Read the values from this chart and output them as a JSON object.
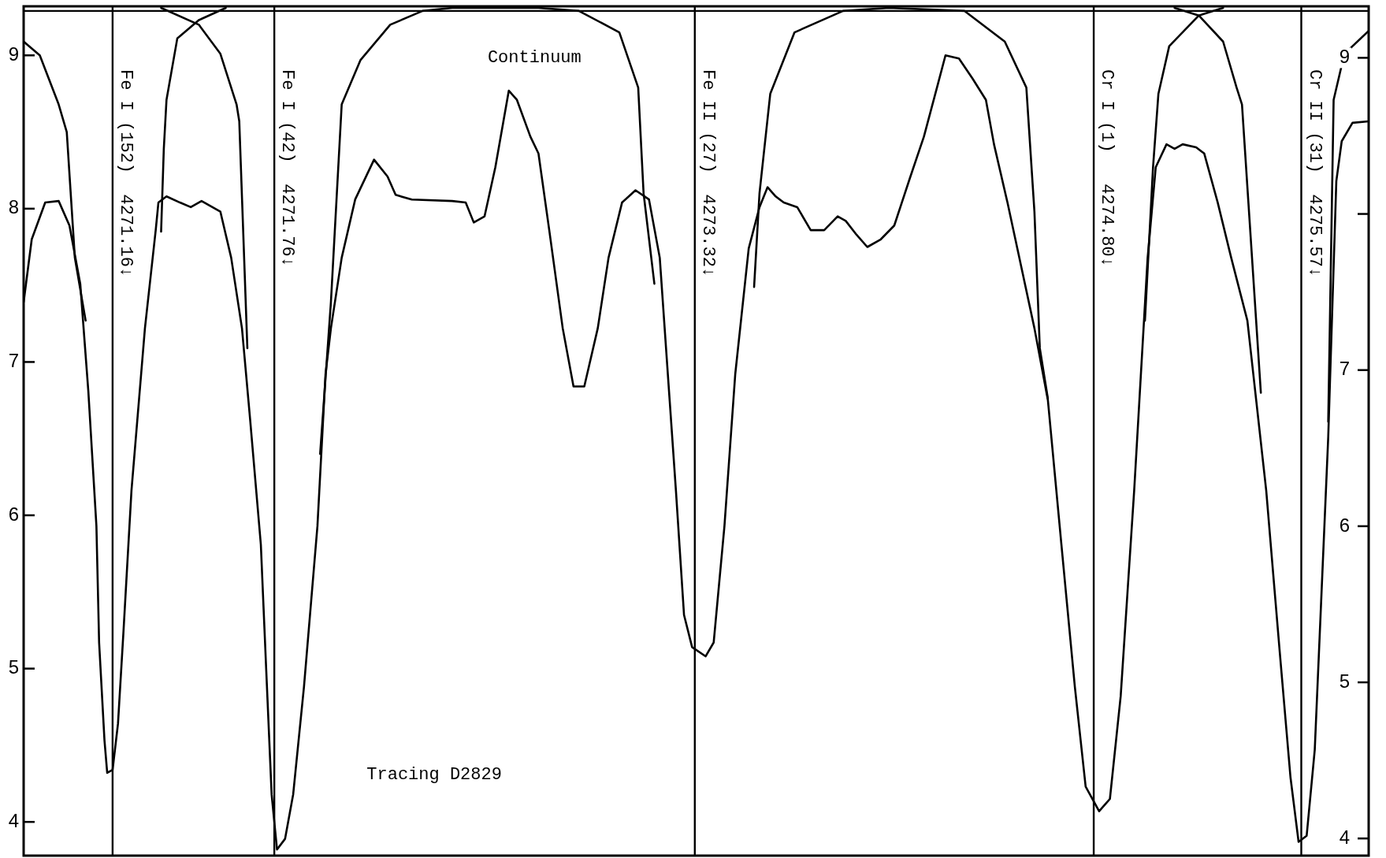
{
  "chart_data": {
    "type": "line",
    "xlim": [
      4270.83,
      4275.82
    ],
    "ylim": [
      3.78,
      9.32
    ],
    "yticks": [
      4,
      5,
      6,
      7,
      8,
      9
    ],
    "y2lim": [
      3.89,
      9.33
    ],
    "y2ticks": [
      4,
      5,
      6,
      7,
      {
        "value": 8,
        "label": null
      },
      9
    ],
    "tick_labels": "y",
    "grid": false,
    "legend": false,
    "marker": "none",
    "line_style": "solid",
    "annotations": [
      "Continuum",
      "Tracing D2829"
    ],
    "ref_lines": [
      {
        "axis": "x",
        "value": 4271.16,
        "label": "Fe I (152)  4271.16↓"
      },
      {
        "axis": "x",
        "value": 4271.76,
        "label": "Fe I (42)  4271.76↓"
      },
      {
        "axis": "x",
        "value": 4273.32,
        "label": "Fe II (27)  4273.32↓"
      },
      {
        "axis": "x",
        "value": 4274.8,
        "label": "Cr I (1)   4274.80↓"
      },
      {
        "axis": "x",
        "value": 4275.57,
        "label": "Cr II (31)  4275.57↓"
      },
      {
        "axis": "y",
        "value": 9.29
      }
    ],
    "series": [
      {
        "color": "#000000",
        "x": [
          4270.83,
          4270.86,
          4270.91,
          4270.96,
          4271.0,
          4271.04,
          4271.07,
          4271.1,
          4271.11,
          4271.13,
          4271.14,
          4271.16,
          4271.18,
          4271.2,
          4271.23,
          4271.28,
          4271.32,
          4271.33,
          4271.36,
          4271.41,
          4271.45,
          4271.49,
          4271.56,
          4271.6,
          4271.64,
          4271.67,
          4271.71,
          4271.73,
          4271.75,
          4271.77,
          4271.8,
          4271.83,
          4271.87,
          4271.92,
          4271.95,
          4271.97,
          4272.01,
          4272.06,
          4272.13,
          4272.18,
          4272.21,
          4272.27,
          4272.42,
          4272.47,
          4272.5,
          4272.54,
          4272.58,
          4272.63,
          4272.66,
          4272.71,
          4272.74,
          4272.78,
          4272.83,
          4272.87,
          4272.91,
          4272.96,
          4273.0,
          4273.05,
          4273.1,
          4273.15,
          4273.19,
          4273.25,
          4273.28,
          4273.31,
          4273.36,
          4273.39,
          4273.43,
          4273.47,
          4273.52,
          4273.56,
          4273.59,
          4273.62,
          4273.65,
          4273.7,
          4273.75,
          4273.8,
          4273.85,
          4273.88,
          4273.92,
          4273.96,
          4274.01,
          4274.06,
          4274.12,
          4274.17,
          4274.22,
          4274.25,
          4274.3,
          4274.35,
          4274.4,
          4274.43,
          4274.48,
          4274.53,
          4274.58,
          4274.63,
          4274.68,
          4274.73,
          4274.77,
          4274.82,
          4274.86,
          4274.9,
          4274.95,
          4275.0,
          4275.03,
          4275.07,
          4275.1,
          4275.13,
          4275.18,
          4275.21,
          4275.26,
          4275.31,
          4275.37,
          4275.44,
          4275.49,
          4275.53,
          4275.56,
          4275.59,
          4275.62,
          4275.67,
          4275.7,
          4275.72,
          4275.76,
          4275.82
        ],
        "values": [
          7.39,
          7.8,
          8.04,
          8.05,
          7.89,
          7.51,
          6.81,
          5.93,
          5.17,
          4.53,
          4.32,
          4.34,
          4.64,
          5.23,
          6.16,
          7.22,
          7.86,
          8.04,
          8.08,
          8.04,
          8.01,
          8.05,
          7.98,
          7.68,
          7.22,
          6.63,
          5.81,
          4.99,
          4.18,
          3.82,
          3.89,
          4.18,
          4.88,
          5.93,
          6.92,
          7.22,
          7.68,
          8.06,
          8.32,
          8.21,
          8.09,
          8.06,
          8.05,
          8.04,
          7.91,
          7.95,
          8.27,
          8.77,
          8.71,
          8.47,
          8.36,
          7.86,
          7.22,
          6.84,
          6.84,
          7.22,
          7.68,
          8.04,
          8.12,
          8.06,
          7.68,
          6.16,
          5.35,
          5.14,
          5.08,
          5.17,
          5.93,
          6.92,
          7.74,
          8.01,
          8.14,
          8.08,
          8.04,
          8.01,
          7.86,
          7.86,
          7.95,
          7.92,
          7.83,
          7.75,
          7.8,
          7.89,
          8.21,
          8.47,
          8.8,
          9.0,
          8.98,
          8.85,
          8.71,
          8.42,
          8.04,
          7.63,
          7.22,
          6.75,
          5.81,
          4.88,
          4.23,
          4.07,
          4.15,
          4.82,
          6.16,
          7.68,
          8.27,
          8.42,
          8.39,
          8.42,
          8.4,
          8.36,
          8.04,
          7.68,
          7.27,
          6.16,
          5.11,
          4.29,
          3.87,
          3.91,
          4.47,
          6.51,
          8.18,
          8.44,
          8.56,
          8.57
        ]
      },
      {
        "color": "#000000",
        "x": [
          4270.83,
          4270.89,
          4270.96,
          4270.99,
          4271.02,
          4271.06
        ],
        "values": [
          9.09,
          9.0,
          8.68,
          8.5,
          7.68,
          7.27
        ]
      },
      {
        "color": "#000000",
        "x": [
          4271.34,
          4271.35,
          4271.36,
          4271.4,
          4271.48,
          4271.58
        ],
        "values": [
          7.85,
          8.39,
          8.71,
          9.11,
          9.23,
          9.31
        ]
      },
      {
        "color": "#000000",
        "x": [
          4271.34,
          4271.48,
          4271.56,
          4271.62,
          4271.63,
          4271.66
        ],
        "values": [
          9.31,
          9.2,
          9.01,
          8.68,
          8.57,
          7.09
        ]
      },
      {
        "color": "#000000",
        "x": [
          4271.93,
          4271.97,
          4272.01,
          4272.08,
          4272.19,
          4272.31,
          4272.42,
          4272.74,
          4272.89,
          4273.04,
          4273.11,
          4273.13,
          4273.17
        ],
        "values": [
          6.4,
          7.39,
          8.68,
          8.97,
          9.2,
          9.29,
          9.31,
          9.31,
          9.29,
          9.15,
          8.79,
          8.1,
          7.51
        ]
      },
      {
        "color": "#000000",
        "x": [
          4273.54,
          4273.56,
          4273.6,
          4273.69,
          4273.87,
          4274.04,
          4274.32,
          4274.47,
          4274.55,
          4274.58,
          4274.6,
          4274.63
        ],
        "values": [
          7.49,
          8.1,
          8.75,
          9.15,
          9.29,
          9.31,
          9.29,
          9.09,
          8.79,
          7.98,
          7.09,
          6.76
        ]
      },
      {
        "color": "#000000",
        "x": [
          4274.99,
          4275.02,
          4275.04,
          4275.08,
          4275.19,
          4275.28
        ],
        "values": [
          7.27,
          8.27,
          8.75,
          9.06,
          9.26,
          9.31
        ]
      },
      {
        "color": "#000000",
        "x": [
          4275.1,
          4275.19,
          4275.28,
          4275.33,
          4275.35,
          4275.42
        ],
        "values": [
          9.31,
          9.26,
          9.09,
          8.79,
          8.68,
          6.8
        ]
      },
      {
        "color": "#000000",
        "x": [
          4275.67,
          4275.69,
          4275.73,
          4275.82
        ],
        "values": [
          6.61,
          8.71,
          9.01,
          9.16
        ]
      }
    ]
  }
}
